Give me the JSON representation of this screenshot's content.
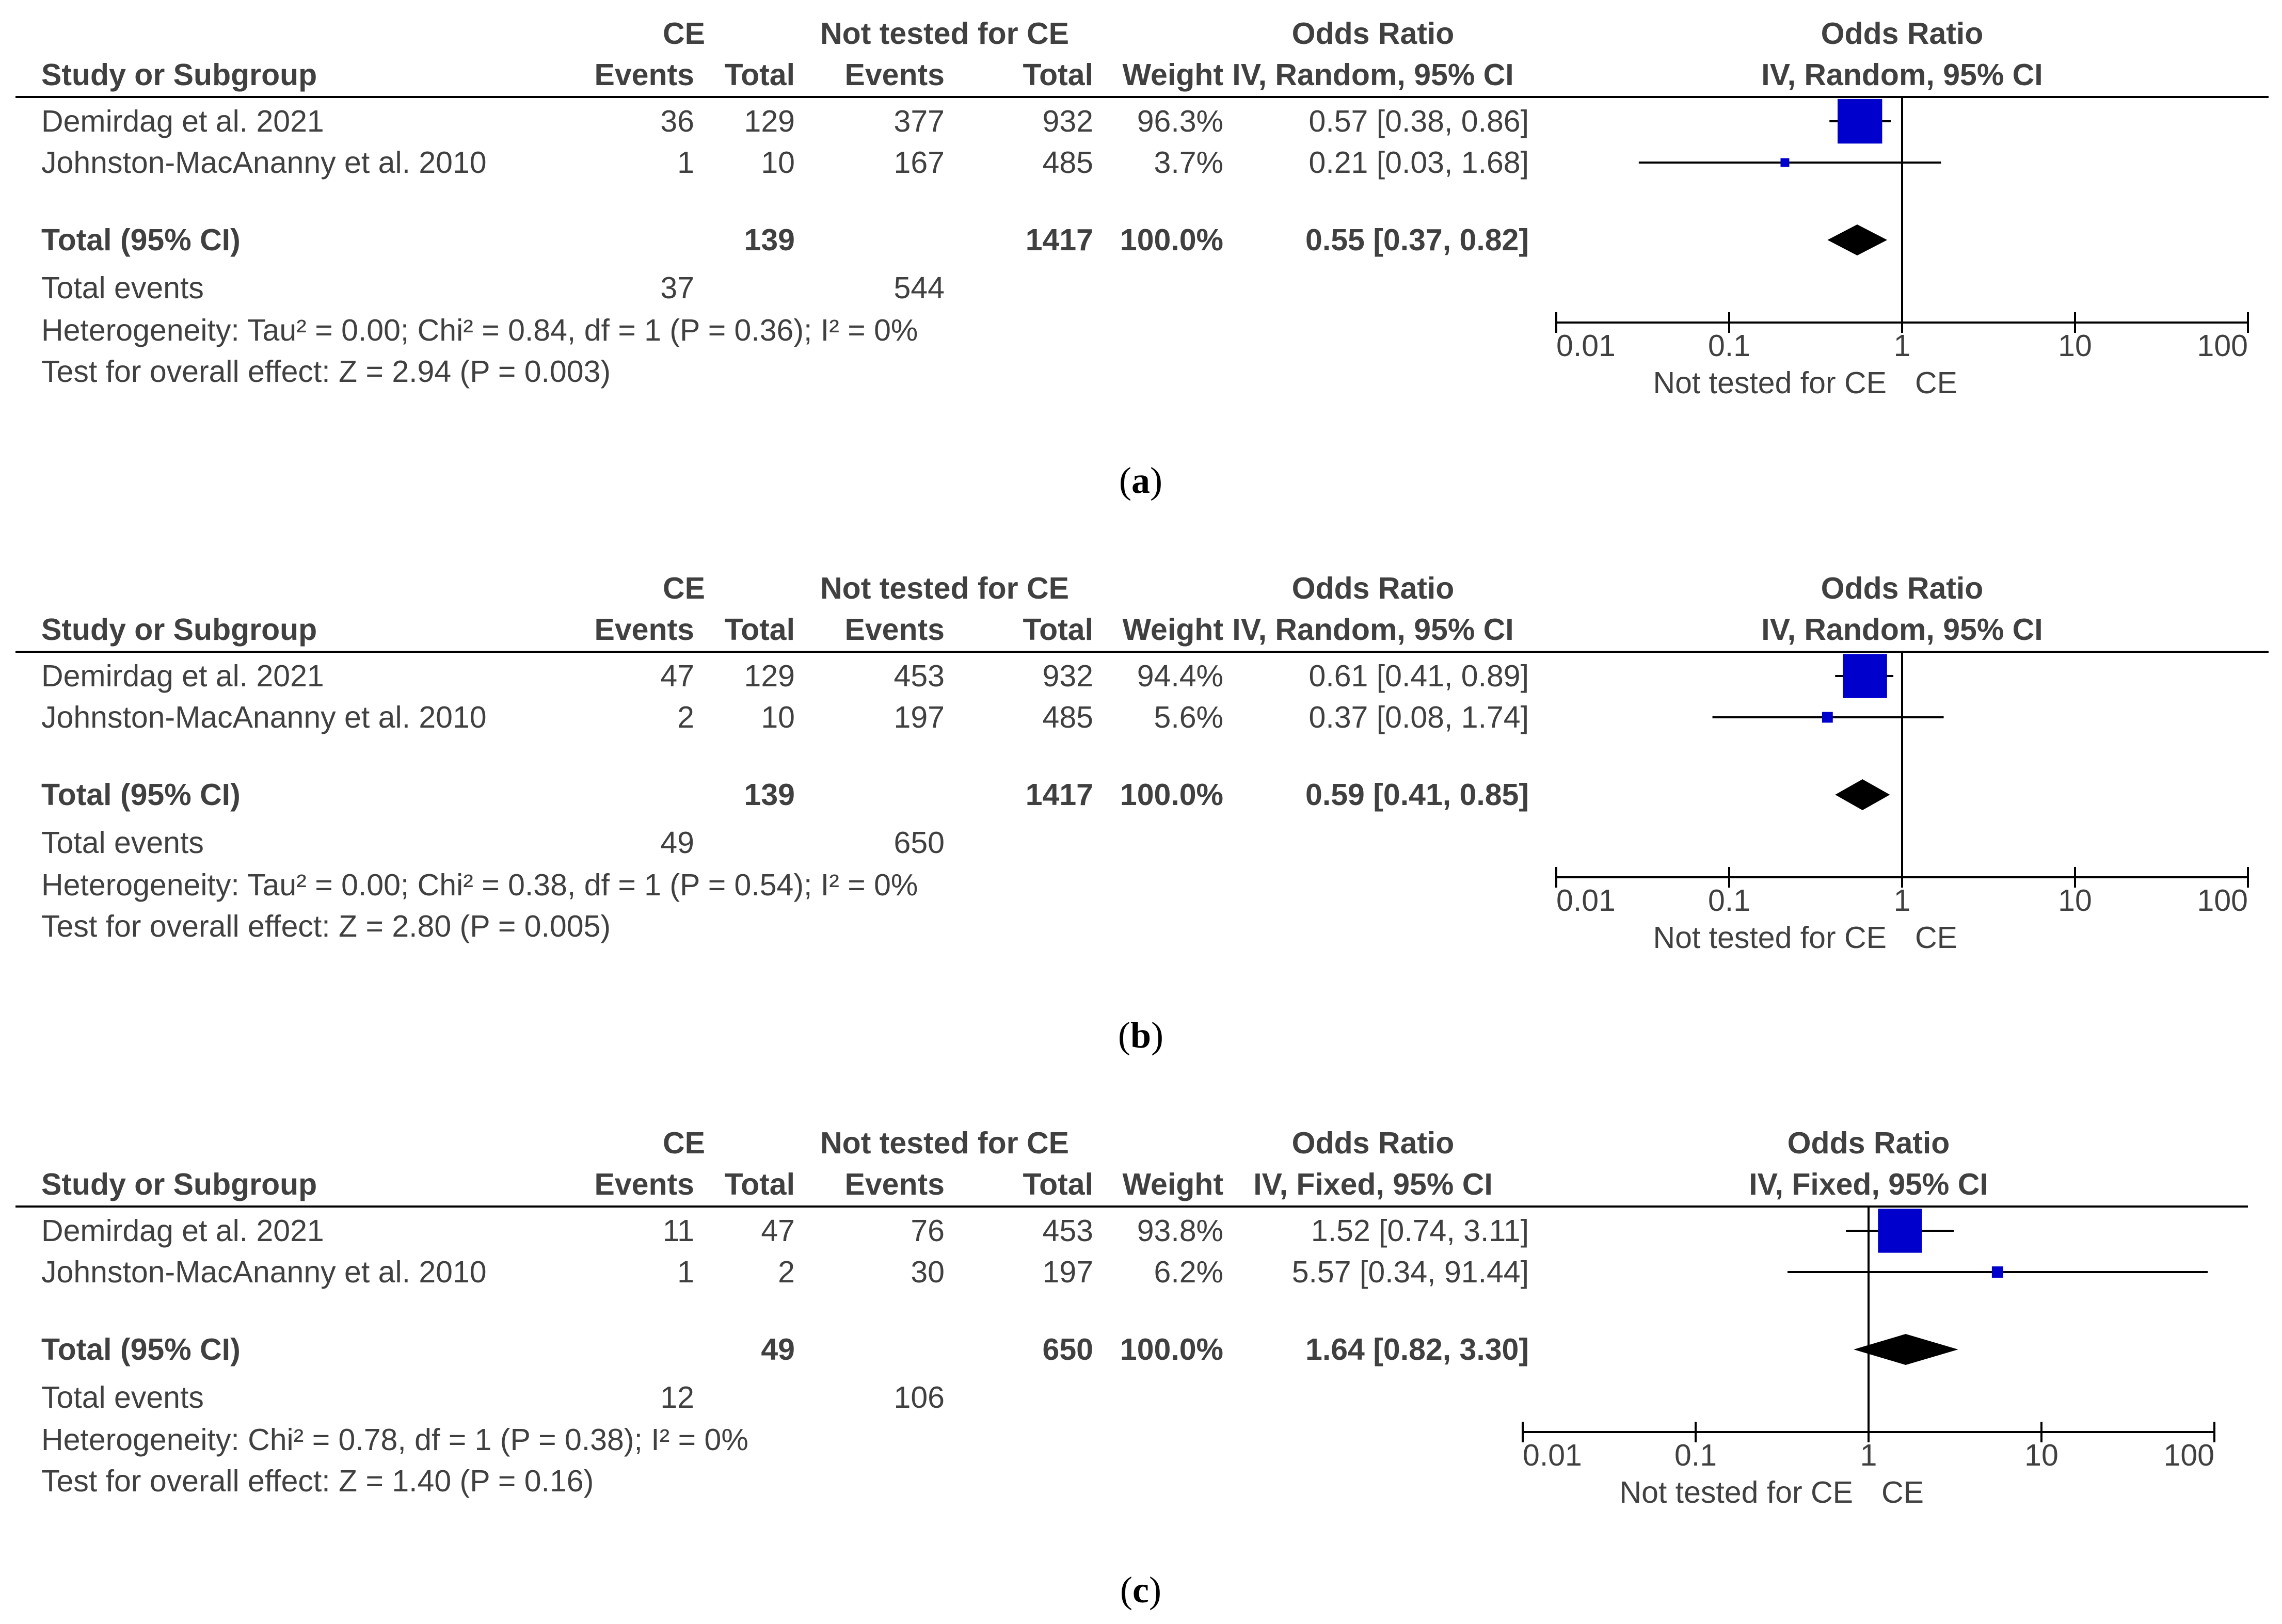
{
  "colors": {
    "text": "#404040",
    "square": "#0000cc",
    "diamond": "#000000",
    "line": "#000000"
  },
  "chart_data": [
    {
      "type": "forest",
      "caption": "a",
      "group1_label": "CE",
      "group2_label": "Not tested for CE",
      "headers": {
        "study": "Study or Subgroup",
        "events1": "Events",
        "total1": "Total",
        "events2": "Events",
        "total2": "Total",
        "weight": "Weight",
        "or_title": "Odds Ratio",
        "or_method": "IV, Random, 95% CI",
        "plot_title": "Odds Ratio",
        "plot_method": "IV, Random, 95% CI"
      },
      "studies": [
        {
          "name": "Demirdag et al. 2021",
          "events1": "36",
          "total1": "129",
          "events2": "377",
          "total2": "932",
          "weight": "96.3%",
          "ci_text": "0.57 [0.38, 0.86]",
          "or": 0.57,
          "lo": 0.38,
          "hi": 0.86,
          "w": 96.3
        },
        {
          "name": "Johnston-MacAnanny et al. 2010",
          "events1": "1",
          "total1": "10",
          "events2": "167",
          "total2": "485",
          "weight": "3.7%",
          "ci_text": "0.21 [0.03, 1.68]",
          "or": 0.21,
          "lo": 0.03,
          "hi": 1.68,
          "w": 3.7
        }
      ],
      "total": {
        "label": "Total (95% CI)",
        "total1": "139",
        "total2": "1417",
        "weight": "100.0%",
        "ci_text": "0.55 [0.37, 0.82]",
        "or": 0.55,
        "lo": 0.37,
        "hi": 0.82
      },
      "total_events": {
        "label": "Total events",
        "events1": "37",
        "events2": "544"
      },
      "heterogeneity": "Heterogeneity: Tau² = 0.00; Chi² = 0.84, df = 1 (P = 0.36); I² = 0%",
      "overall_effect": "Test for overall effect: Z = 2.94 (P = 0.003)",
      "axis": {
        "scale": "log",
        "ticks": [
          0.01,
          0.1,
          1,
          10,
          100
        ],
        "tick_labels": [
          "0.01",
          "0.1",
          "1",
          "10",
          "100"
        ],
        "favours_left": "Not tested for CE",
        "favours_right": "CE"
      }
    },
    {
      "type": "forest",
      "caption": "b",
      "group1_label": "CE",
      "group2_label": "Not tested for CE",
      "headers": {
        "study": "Study or Subgroup",
        "events1": "Events",
        "total1": "Total",
        "events2": "Events",
        "total2": "Total",
        "weight": "Weight",
        "or_title": "Odds Ratio",
        "or_method": "IV, Random, 95% CI",
        "plot_title": "Odds Ratio",
        "plot_method": "IV, Random, 95% CI"
      },
      "studies": [
        {
          "name": "Demirdag et al. 2021",
          "events1": "47",
          "total1": "129",
          "events2": "453",
          "total2": "932",
          "weight": "94.4%",
          "ci_text": "0.61 [0.41, 0.89]",
          "or": 0.61,
          "lo": 0.41,
          "hi": 0.89,
          "w": 94.4
        },
        {
          "name": "Johnston-MacAnanny et al. 2010",
          "events1": "2",
          "total1": "10",
          "events2": "197",
          "total2": "485",
          "weight": "5.6%",
          "ci_text": "0.37 [0.08, 1.74]",
          "or": 0.37,
          "lo": 0.08,
          "hi": 1.74,
          "w": 5.6
        }
      ],
      "total": {
        "label": "Total (95% CI)",
        "total1": "139",
        "total2": "1417",
        "weight": "100.0%",
        "ci_text": "0.59 [0.41, 0.85]",
        "or": 0.59,
        "lo": 0.41,
        "hi": 0.85
      },
      "total_events": {
        "label": "Total events",
        "events1": "49",
        "events2": "650"
      },
      "heterogeneity": "Heterogeneity: Tau² = 0.00; Chi² = 0.38, df = 1 (P = 0.54); I² = 0%",
      "overall_effect": "Test for overall effect: Z = 2.80 (P = 0.005)",
      "axis": {
        "scale": "log",
        "ticks": [
          0.01,
          0.1,
          1,
          10,
          100
        ],
        "tick_labels": [
          "0.01",
          "0.1",
          "1",
          "10",
          "100"
        ],
        "favours_left": "Not tested for CE",
        "favours_right": "CE"
      }
    },
    {
      "type": "forest",
      "caption": "c",
      "group1_label": "CE",
      "group2_label": "Not tested for CE",
      "headers": {
        "study": "Study or Subgroup",
        "events1": "Events",
        "total1": "Total",
        "events2": "Events",
        "total2": "Total",
        "weight": "Weight",
        "or_title": "Odds Ratio",
        "or_method": "IV, Fixed, 95% CI",
        "plot_title": "Odds Ratio",
        "plot_method": "IV, Fixed, 95% CI"
      },
      "studies": [
        {
          "name": "Demirdag et al. 2021",
          "events1": "11",
          "total1": "47",
          "events2": "76",
          "total2": "453",
          "weight": "93.8%",
          "ci_text": "1.52 [0.74, 3.11]",
          "or": 1.52,
          "lo": 0.74,
          "hi": 3.11,
          "w": 93.8
        },
        {
          "name": "Johnston-MacAnanny et al. 2010",
          "events1": "1",
          "total1": "2",
          "events2": "30",
          "total2": "197",
          "weight": "6.2%",
          "ci_text": "5.57 [0.34, 91.44]",
          "or": 5.57,
          "lo": 0.34,
          "hi": 91.44,
          "w": 6.2
        }
      ],
      "total": {
        "label": "Total (95% CI)",
        "total1": "49",
        "total2": "650",
        "weight": "100.0%",
        "ci_text": "1.64 [0.82, 3.30]",
        "or": 1.64,
        "lo": 0.82,
        "hi": 3.3
      },
      "total_events": {
        "label": "Total events",
        "events1": "12",
        "events2": "106"
      },
      "heterogeneity": "Heterogeneity: Chi² = 0.78, df = 1 (P = 0.38); I² = 0%",
      "overall_effect": "Test for overall effect: Z = 1.40 (P = 0.16)",
      "axis": {
        "scale": "log",
        "ticks": [
          0.01,
          0.1,
          1,
          10,
          100
        ],
        "tick_labels": [
          "0.01",
          "0.1",
          "1",
          "10",
          "100"
        ],
        "favours_left": "Not tested for CE",
        "favours_right": "CE"
      }
    }
  ]
}
